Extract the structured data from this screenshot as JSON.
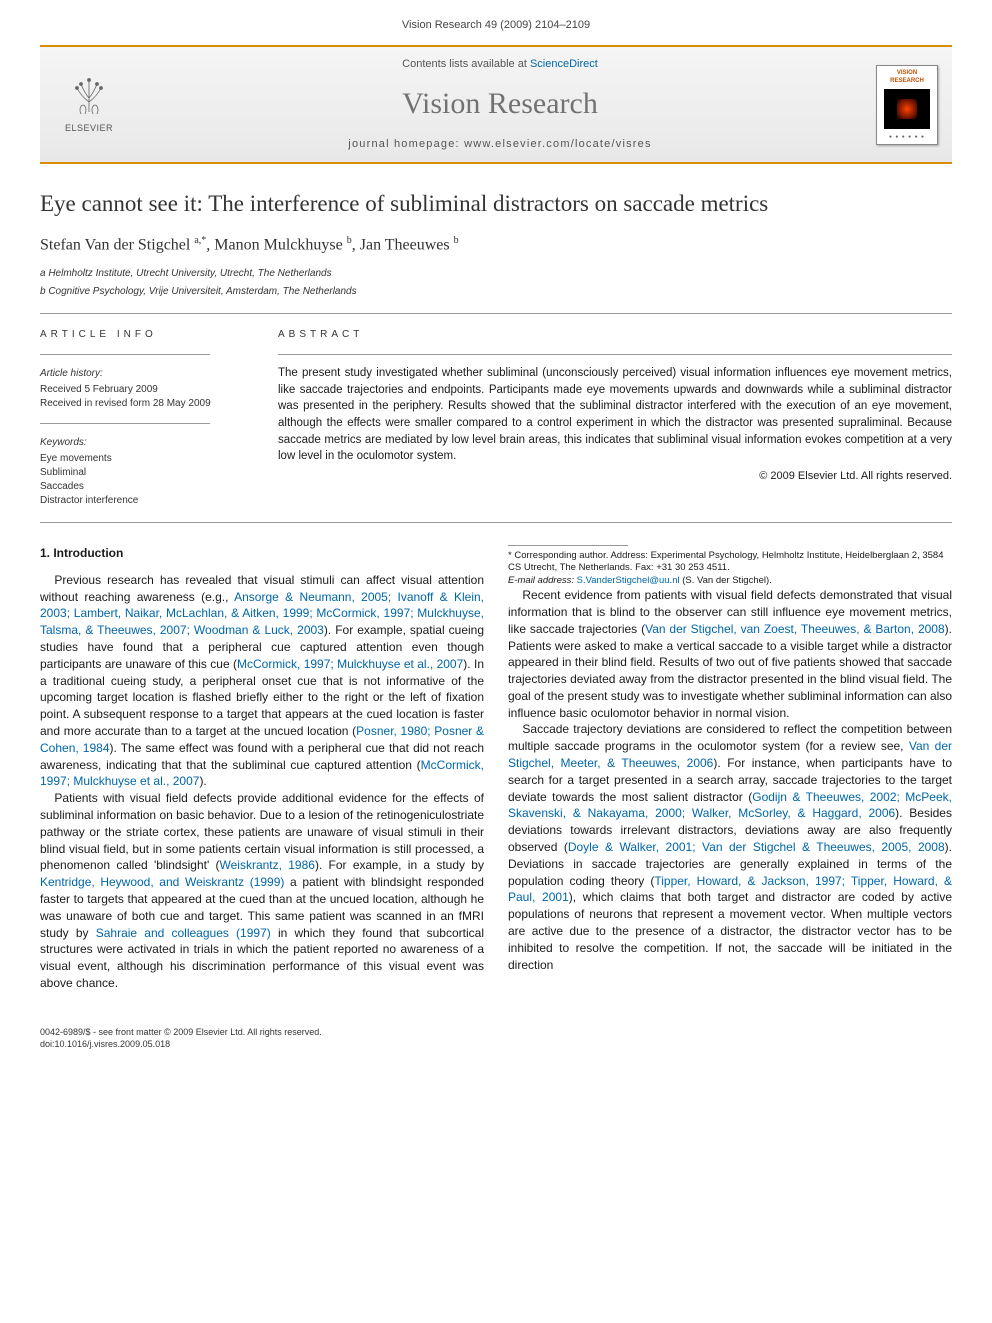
{
  "header": {
    "citation": "Vision Research 49 (2009) 2104–2109"
  },
  "masthead": {
    "contents_prefix": "Contents lists available at ",
    "contents_link": "ScienceDirect",
    "journal": "Vision Research",
    "homepage_prefix": "journal homepage: ",
    "homepage": "www.elsevier.com/locate/visres",
    "publisher_logo_alt": "ELSEVIER",
    "cover_title": "VISION RESEARCH"
  },
  "article": {
    "title": "Eye cannot see it: The interference of subliminal distractors on saccade metrics",
    "authors_html": "Stefan Van der Stigchel <sup>a,*</sup>, Manon Mulckhuyse <sup>b</sup>, Jan Theeuwes <sup>b</sup>",
    "affiliations": [
      "a Helmholtz Institute, Utrecht University, Utrecht, The Netherlands",
      "b Cognitive Psychology, Vrije Universiteit, Amsterdam, The Netherlands"
    ]
  },
  "info": {
    "heading": "ARTICLE INFO",
    "history_title": "Article history:",
    "received": "Received 5 February 2009",
    "revised": "Received in revised form 28 May 2009",
    "keywords_title": "Keywords:",
    "keywords": [
      "Eye movements",
      "Subliminal",
      "Saccades",
      "Distractor interference"
    ]
  },
  "abstract": {
    "heading": "ABSTRACT",
    "text": "The present study investigated whether subliminal (unconsciously perceived) visual information influences eye movement metrics, like saccade trajectories and endpoints. Participants made eye movements upwards and downwards while a subliminal distractor was presented in the periphery. Results showed that the subliminal distractor interfered with the execution of an eye movement, although the effects were smaller compared to a control experiment in which the distractor was presented supraliminal. Because saccade metrics are mediated by low level brain areas, this indicates that subliminal visual information evokes competition at a very low level in the oculomotor system.",
    "copyright": "© 2009 Elsevier Ltd. All rights reserved."
  },
  "body": {
    "section1_heading": "1. Introduction",
    "p1a": "Previous research has revealed that visual stimuli can affect visual attention without reaching awareness (e.g., ",
    "p1_cite1": "Ansorge & Neumann, 2005; Ivanoff & Klein, 2003; Lambert, Naikar, McLachlan, & Aitken, 1999; McCormick, 1997; Mulckhuyse, Talsma, & Theeuwes, 2007; Woodman & Luck, 2003",
    "p1b": "). For example, spatial cueing studies have found that a peripheral cue captured attention even though participants are unaware of this cue (",
    "p1_cite2": "McCormick, 1997; Mulckhuyse et al., 2007",
    "p1c": "). In a traditional cueing study, a peripheral onset cue that is not informative of the upcoming target location is flashed briefly either to the right or the left of fixation point. A subsequent response to a target that appears at the cued location is faster and more accurate than to a target at the uncued location (",
    "p1_cite3": "Posner, 1980; Posner & Cohen, 1984",
    "p1d": "). The same effect was found with a peripheral cue that did not reach awareness, indicating that that the subliminal cue captured attention (",
    "p1_cite4": "McCormick, 1997; Mulckhuyse et al., 2007",
    "p1e": ").",
    "p2a": "Patients with visual field defects provide additional evidence for the effects of subliminal information on basic behavior. Due to a lesion of the retinogeniculostriate pathway or the striate cortex, these patients are unaware of visual stimuli in their blind visual field, but in some patients certain visual information is still processed, a phenomenon called 'blindsight' (",
    "p2_cite1": "Weiskrantz, 1986",
    "p2b": "). For example, in a study by ",
    "p2_cite2": "Kentridge, Heywood, and Weiskrantz (1999)",
    "p2c": " a patient with blindsight responded faster to targets that appeared at the cued than at the uncued location, although he was unaware of both cue and target. This same patient was ",
    "p2d": "scanned in an fMRI study by ",
    "p2_cite3": "Sahraie and colleagues (1997)",
    "p2e": " in which they found that subcortical structures were activated in trials in which the patient reported no awareness of a visual event, although his discrimination performance of this visual event was above chance.",
    "p3a": "Recent evidence from patients with visual field defects demonstrated that visual information that is blind to the observer can still influence eye movement metrics, like saccade trajectories (",
    "p3_cite1": "Van der Stigchel, van Zoest, Theeuwes, & Barton, 2008",
    "p3b": "). Patients were asked to make a vertical saccade to a visible target while a distractor appeared in their blind field. Results of two out of five patients showed that saccade trajectories deviated away from the distractor presented in the blind visual field. The goal of the present study was to investigate whether subliminal information can also influence basic oculomotor behavior in normal vision.",
    "p4a": "Saccade trajectory deviations are considered to reflect the competition between multiple saccade programs in the oculomotor system (for a review see, ",
    "p4_cite1": "Van der Stigchel, Meeter, & Theeuwes, 2006",
    "p4b": "). For instance, when participants have to search for a target presented in a search array, saccade trajectories to the target deviate towards the most salient distractor (",
    "p4_cite2": "Godijn & Theeuwes, 2002; McPeek, Skavenski, & Nakayama, 2000; Walker, McSorley, & Haggard, 2006",
    "p4c": "). Besides deviations towards irrelevant distractors, deviations away are also frequently observed (",
    "p4_cite3": "Doyle & Walker, 2001; Van der Stigchel & Theeuwes, 2005, 2008",
    "p4d": "). Deviations in saccade trajectories are generally explained in terms of the population coding theory (",
    "p4_cite4": "Tipper, Howard, & Jackson, 1997; Tipper, Howard, & Paul, 2001",
    "p4e": "), which claims that both target and distractor are coded by active populations of neurons that represent a movement vector. When multiple vectors are active due to the presence of a distractor, the distractor vector has to be inhibited to resolve the competition. If not, the saccade will be initiated in the direction"
  },
  "footnote": {
    "star": "* Corresponding author. Address: Experimental Psychology, Helmholtz Institute, Heidelberglaan 2, 3584 CS Utrecht, The Netherlands. Fax: +31 30 253 4511.",
    "email_label": "E-mail address: ",
    "email": "S.VanderStigchel@uu.nl",
    "email_suffix": " (S. Van der Stigchel)."
  },
  "footer": {
    "issn": "0042-6989/$ - see front matter © 2009 Elsevier Ltd. All rights reserved.",
    "doi": "doi:10.1016/j.visres.2009.05.018"
  },
  "colors": {
    "accent": "#d98c00",
    "link": "#0066aa",
    "header_grey": "#727272"
  }
}
